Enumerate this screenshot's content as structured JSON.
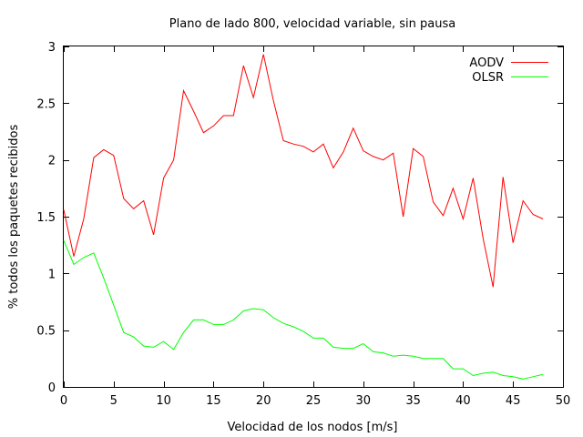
{
  "chart_data": {
    "type": "line",
    "title": "Plano de lado 800, velocidad variable, sin pausa",
    "xlabel": "Velocidad de los nodos [m/s]",
    "ylabel": "% todos los paquetes recibidos",
    "xlim": [
      0,
      50
    ],
    "ylim": [
      0,
      3
    ],
    "xticks": [
      0,
      5,
      10,
      15,
      20,
      25,
      30,
      35,
      40,
      45,
      50
    ],
    "yticks": [
      0,
      0.5,
      1,
      1.5,
      2,
      2.5,
      3
    ],
    "grid": false,
    "legend_position": "top-right",
    "x": [
      0,
      1,
      2,
      3,
      4,
      5,
      6,
      7,
      8,
      9,
      10,
      11,
      12,
      13,
      14,
      15,
      16,
      17,
      18,
      19,
      20,
      21,
      22,
      23,
      24,
      25,
      26,
      27,
      28,
      29,
      30,
      31,
      32,
      33,
      34,
      35,
      36,
      37,
      38,
      39,
      40,
      41,
      42,
      43,
      44,
      45,
      46,
      47,
      48
    ],
    "series": [
      {
        "name": "AODV",
        "color": "#ff0000",
        "values": [
          1.56,
          1.15,
          1.48,
          2.02,
          2.09,
          2.04,
          1.66,
          1.57,
          1.64,
          1.34,
          1.84,
          2.0,
          2.61,
          2.43,
          2.24,
          2.3,
          2.39,
          2.39,
          2.83,
          2.55,
          2.93,
          2.52,
          2.17,
          2.14,
          2.12,
          2.07,
          2.14,
          1.93,
          2.07,
          2.28,
          2.08,
          2.03,
          2.0,
          2.06,
          1.5,
          2.1,
          2.03,
          1.63,
          1.51,
          1.75,
          1.48,
          1.84,
          1.31,
          0.88,
          1.85,
          1.27,
          1.64,
          1.52,
          1.48
        ]
      },
      {
        "name": "OLSR",
        "color": "#00ff00",
        "values": [
          1.29,
          1.08,
          1.14,
          1.18,
          0.96,
          0.72,
          0.48,
          0.44,
          0.36,
          0.35,
          0.4,
          0.33,
          0.48,
          0.59,
          0.59,
          0.55,
          0.55,
          0.59,
          0.67,
          0.69,
          0.68,
          0.61,
          0.56,
          0.53,
          0.49,
          0.43,
          0.43,
          0.35,
          0.34,
          0.34,
          0.38,
          0.31,
          0.3,
          0.27,
          0.28,
          0.27,
          0.25,
          0.25,
          0.25,
          0.16,
          0.16,
          0.1,
          0.12,
          0.13,
          0.1,
          0.09,
          0.07,
          0.09,
          0.11
        ]
      }
    ]
  }
}
